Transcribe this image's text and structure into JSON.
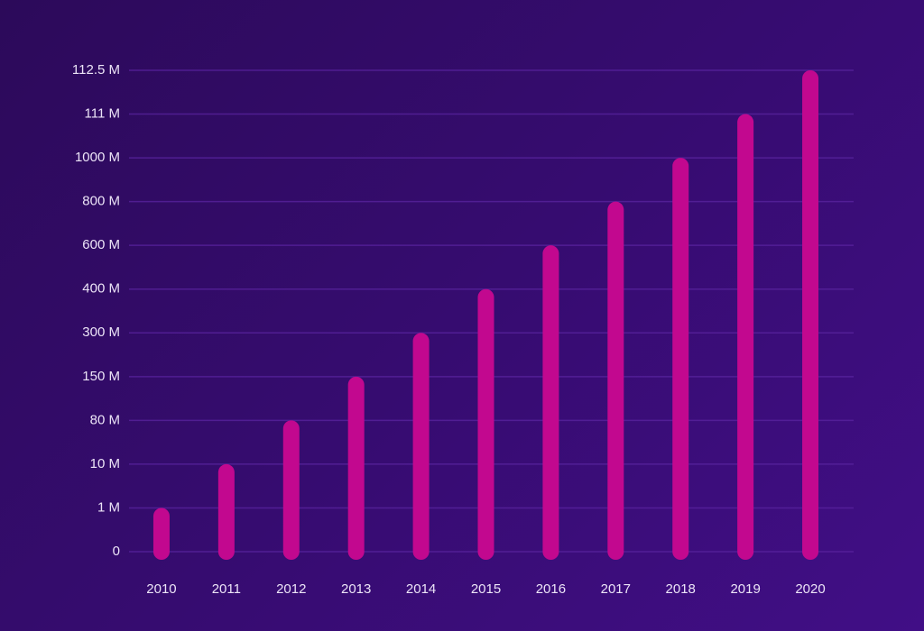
{
  "chart_data": {
    "type": "bar",
    "categories": [
      "2010",
      "2011",
      "2012",
      "2013",
      "2014",
      "2015",
      "2016",
      "2017",
      "2018",
      "2019",
      "2020"
    ],
    "values": [
      1,
      2,
      3,
      4,
      5,
      6,
      7,
      8,
      9,
      10,
      11
    ],
    "color": "#c2088f",
    "ylim": [
      0,
      11
    ],
    "yticks": [
      0,
      {
        "value": 1,
        "label": "1 M"
      },
      {
        "value": 2,
        "label": "10 M"
      },
      {
        "value": 3,
        "label": "80 M"
      },
      {
        "value": 4,
        "label": "150 M"
      },
      {
        "value": 5,
        "label": "300 M"
      },
      {
        "value": 6,
        "label": "400 M"
      },
      {
        "value": 7,
        "label": "600 M"
      },
      {
        "value": 8,
        "label": "800 M"
      },
      {
        "value": 9,
        "label": "1000 M"
      },
      {
        "value": 10,
        "label": "111 M"
      },
      {
        "value": 11,
        "label": "112.5 M"
      }
    ],
    "grid": true
  }
}
